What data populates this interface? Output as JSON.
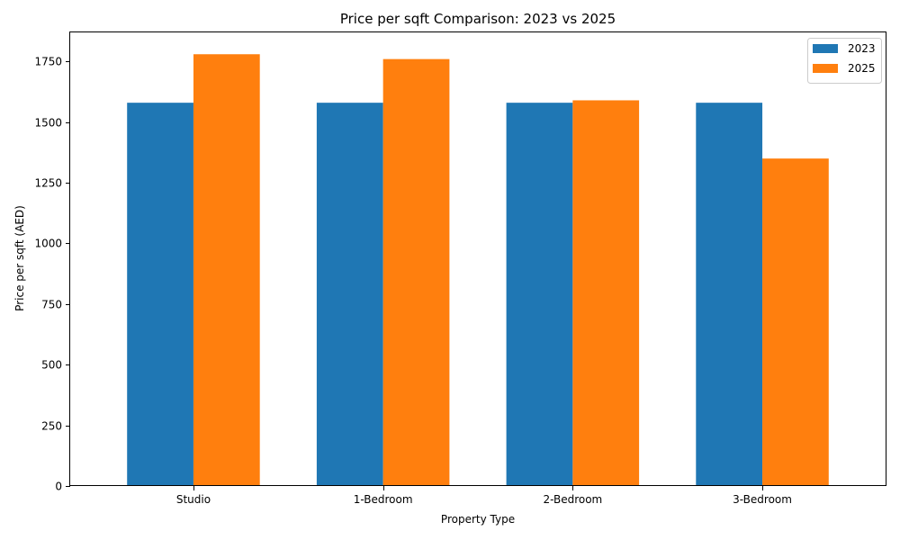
{
  "chart_data": {
    "type": "bar",
    "title": "Price per sqft Comparison: 2023 vs 2025",
    "xlabel": "Property Type",
    "ylabel": "Price per sqft (AED)",
    "categories": [
      "Studio",
      "1-Bedroom",
      "2-Bedroom",
      "3-Bedroom"
    ],
    "series": [
      {
        "name": "2023",
        "color": "#1f77b4",
        "values": [
          1580,
          1580,
          1580,
          1580
        ]
      },
      {
        "name": "2025",
        "color": "#ff7f0e",
        "values": [
          1780,
          1760,
          1590,
          1350
        ]
      }
    ],
    "ylim": [
      0,
      1870
    ],
    "yticks": [
      0,
      250,
      500,
      750,
      1000,
      1250,
      1500,
      1750
    ],
    "grid": false,
    "legend_position": "top-right"
  }
}
